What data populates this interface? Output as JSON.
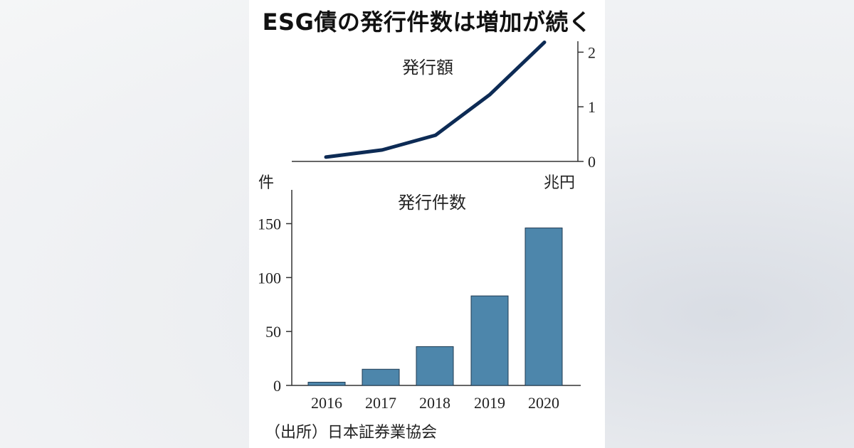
{
  "title": "ESG債の発行件数は増加が続く",
  "source": "（出所）日本証券業協会",
  "chart_data": [
    {
      "type": "line",
      "title": "発行額",
      "unit": "兆円",
      "x": [
        "2016",
        "2017",
        "2018",
        "2019",
        "2020"
      ],
      "series": [
        {
          "values": [
            0.08,
            0.21,
            0.48,
            1.22,
            2.18
          ]
        }
      ],
      "ylim": [
        0,
        2.2
      ],
      "yticks": [
        "0",
        "1",
        "2"
      ],
      "axis_side": "right",
      "color": "#0d2b55"
    },
    {
      "type": "bar",
      "title": "発行件数",
      "unit": "件",
      "categories": [
        "2016",
        "2017",
        "2018",
        "2019",
        "2020"
      ],
      "values": [
        3,
        15,
        36,
        83,
        146
      ],
      "ylim": [
        0,
        180
      ],
      "yticks": [
        "0",
        "50",
        "100",
        "150"
      ],
      "axis_side": "left",
      "color": "#4d86ab"
    }
  ]
}
